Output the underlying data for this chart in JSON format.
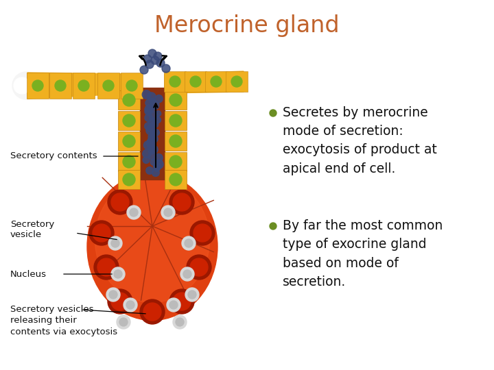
{
  "title": "Merocrine gland",
  "title_color": "#C0622B",
  "title_fontsize": 24,
  "bullet_color": "#6B8E23",
  "bullet_text_color": "#111111",
  "bullet_fontsize": 13.5,
  "bullets": [
    "Secretes by merocrine\nmode of secretion:\nexocytosis of product at\napical end of cell.",
    "By far the most common\ntype of exocrine gland\nbased on mode of\nsecretion."
  ],
  "label_fontsize": 9.5,
  "label_color": "#111111",
  "background_color": "#FFFFFF",
  "bg_tint": "#FAF8F0"
}
